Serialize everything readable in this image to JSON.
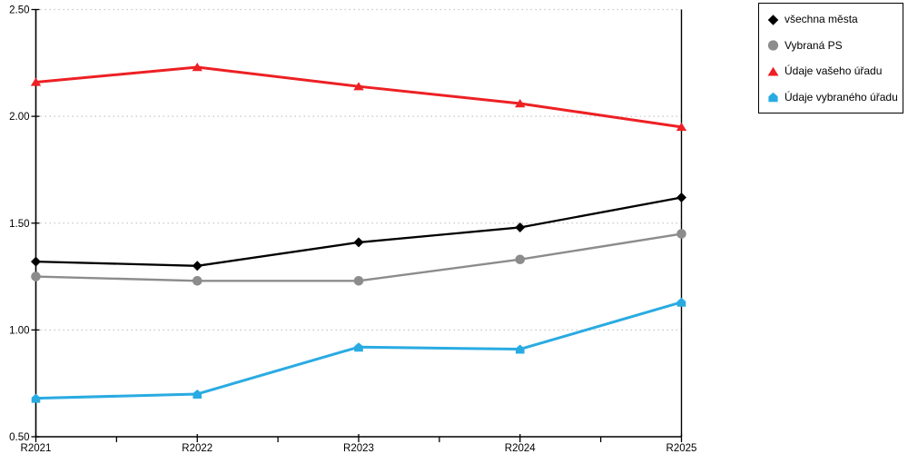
{
  "chart_data": {
    "type": "line",
    "title": "",
    "xlabel": "",
    "ylabel": "",
    "categories": [
      "R2021",
      "R2022",
      "R2023",
      "R2024",
      "R2025"
    ],
    "series": [
      {
        "name": "všechna města",
        "color": "#000000",
        "marker": "diamond",
        "line_width": 2.3,
        "values": [
          1.32,
          1.3,
          1.41,
          1.48,
          1.62
        ]
      },
      {
        "name": "Vybraná PS",
        "color": "#8c8c8c",
        "marker": "circle",
        "line_width": 2.4,
        "values": [
          1.25,
          1.23,
          1.23,
          1.33,
          1.45
        ]
      },
      {
        "name": "Údaje vašeho úřadu",
        "color": "#ed2024",
        "marker": "triangle",
        "line_width": 3.0,
        "values": [
          2.16,
          2.23,
          2.14,
          2.06,
          1.95
        ]
      },
      {
        "name": "Údaje vybraného úřadu",
        "color": "#29abe2",
        "marker": "house",
        "line_width": 3.0,
        "values": [
          0.68,
          0.7,
          0.92,
          0.91,
          1.13
        ]
      }
    ],
    "ylim": [
      0.5,
      2.5
    ],
    "ytick_step": 0.5,
    "ytick_labels": [
      "0.50",
      "1.00",
      "1.50",
      "2.00",
      "2.50"
    ],
    "grid": "dotted-horizontal",
    "grid_color": "#c6c6c6",
    "axis_color": "#000000",
    "legend_position": "top-right"
  }
}
